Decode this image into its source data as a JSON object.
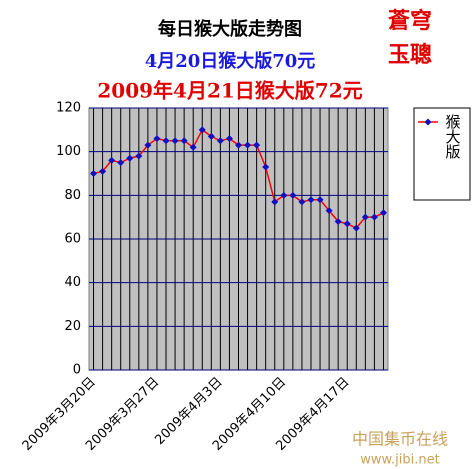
{
  "chart_data": {
    "type": "line",
    "title": "每日猴大版走势图",
    "subtitles": [
      "4月20日猴大版70元",
      "2009年4月21日猴大版72元"
    ],
    "stamp": [
      "蒼穹",
      "玉聰"
    ],
    "watermark": [
      "中国集币在线",
      "www.jibi.net"
    ],
    "categories": [
      "2009年3月20日",
      null,
      null,
      null,
      null,
      null,
      null,
      "2009年3月27日",
      null,
      null,
      null,
      null,
      null,
      null,
      "2009年4月3日",
      null,
      null,
      null,
      null,
      null,
      null,
      "2009年4月10日",
      null,
      null,
      null,
      null,
      null,
      null,
      "2009年4月17日",
      null,
      null,
      null,
      null
    ],
    "series": [
      {
        "name": "猴大版",
        "color": "#ff0000",
        "marker_color": "#1010c0",
        "values": [
          90,
          91,
          96,
          95,
          97,
          98,
          103,
          106,
          105,
          105,
          105,
          102,
          110,
          107,
          105,
          106,
          103,
          103,
          103,
          93,
          77,
          80,
          80,
          77,
          78,
          78,
          73,
          68,
          67,
          65,
          70,
          70,
          72
        ]
      }
    ],
    "ylim": [
      0,
      120
    ],
    "yticks": [
      0,
      20,
      40,
      60,
      80,
      100,
      120
    ],
    "grid": true,
    "legend": "right"
  }
}
